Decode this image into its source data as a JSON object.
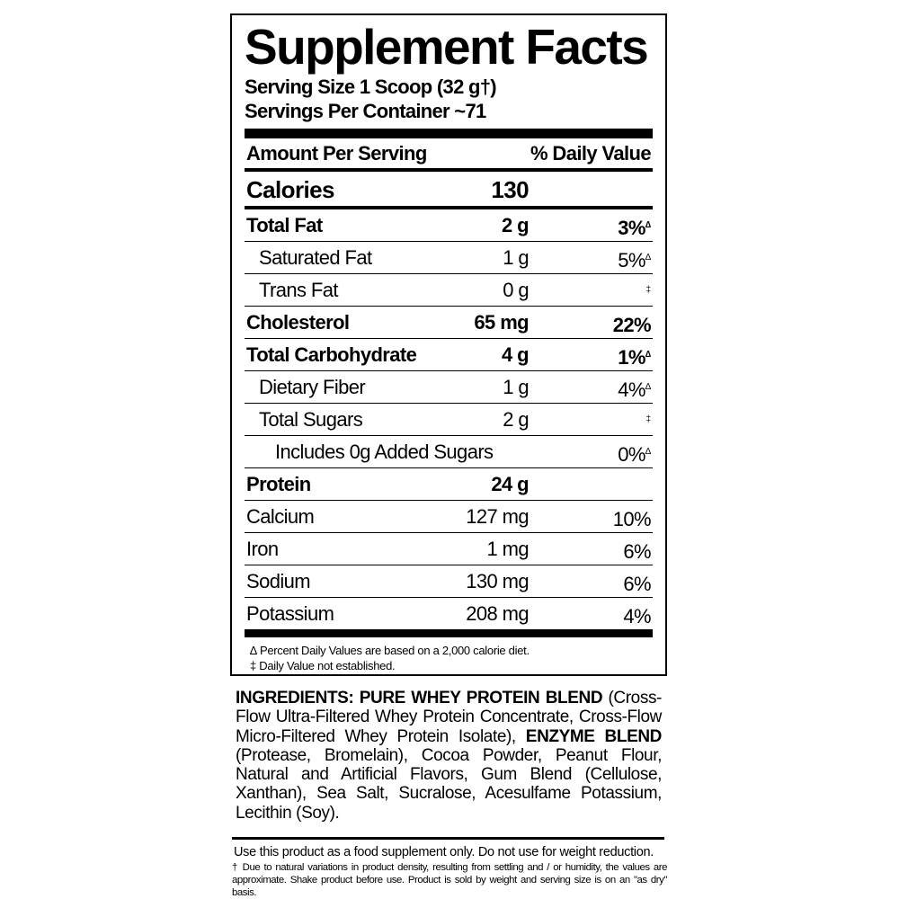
{
  "title": "Supplement Facts",
  "serving_size": "Serving Size 1 Scoop (32 g†)",
  "servings_per_container": "Servings Per Container ~71",
  "header": {
    "amount": "Amount Per Serving",
    "dv": "% Daily Value"
  },
  "calories": {
    "label": "Calories",
    "value": "130"
  },
  "rows": [
    {
      "name": "Total Fat",
      "amount": "2 g",
      "dv": "3%",
      "mark": "∆"
    },
    {
      "name": "Saturated Fat",
      "amount": "1 g",
      "dv": "5%",
      "mark": "∆"
    },
    {
      "name": "Trans Fat",
      "amount": "0 g",
      "dv": "",
      "mark": "‡"
    },
    {
      "name": "Cholesterol",
      "amount": "65 mg",
      "dv": "22%",
      "mark": ""
    },
    {
      "name": "Total Carbohydrate",
      "amount": "4 g",
      "dv": "1%",
      "mark": "∆"
    },
    {
      "name": "Dietary Fiber",
      "amount": "1 g",
      "dv": "4%",
      "mark": "∆"
    },
    {
      "name": "Total Sugars",
      "amount": "2 g",
      "dv": "",
      "mark": "‡"
    },
    {
      "name": "Includes 0g Added Sugars",
      "amount": "",
      "dv": "0%",
      "mark": "∆"
    },
    {
      "name": "Protein",
      "amount": "24 g",
      "dv": "",
      "mark": ""
    },
    {
      "name": "Calcium",
      "amount": "127 mg",
      "dv": "10%",
      "mark": ""
    },
    {
      "name": "Iron",
      "amount": "1 mg",
      "dv": "6%",
      "mark": ""
    },
    {
      "name": "Sodium",
      "amount": "130 mg",
      "dv": "6%",
      "mark": ""
    },
    {
      "name": "Potassium",
      "amount": "208 mg",
      "dv": "4%",
      "mark": ""
    }
  ],
  "footnotes": [
    "∆ Percent Daily Values are based on a 2,000 calorie diet.",
    "‡ Daily Value not established."
  ],
  "ingredients": {
    "label": "INGREDIENTS:",
    "blend1": "PURE WHEY PROTEIN BLEND",
    "text1": "(Cross-Flow Ultra-Filtered Whey Protein Concentrate, Cross-Flow Micro-Filtered Whey Protein Isolate),",
    "blend2": "ENZYME BLEND",
    "text2": "(Protease, Bromelain), Cocoa Powder, Peanut Flour, Natural and Artificial Flavors, Gum Blend (Cellulose, Xanthan), Sea Salt, Sucralose, Acesulfame Potassium, Lecithin (Soy)."
  },
  "usage": "Use this product as a food supplement only. Do not use for weight reduction.",
  "disclaimer": "† Due to natural variations in product density, resulting from settling and / or humidity, the values are approximate. Shake product before use. Product is sold by weight and serving size is on an \"as dry\" basis."
}
